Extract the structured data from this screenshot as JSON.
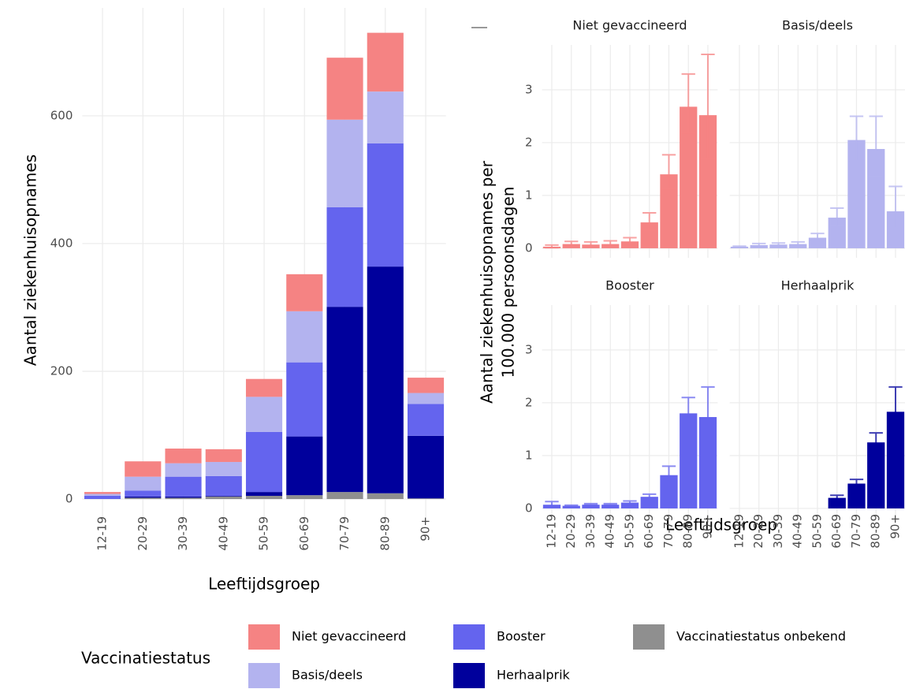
{
  "chart_data": [
    {
      "type": "stacked_bar",
      "categories": [
        "12-19",
        "20-29",
        "30-39",
        "40-49",
        "50-59",
        "60-69",
        "70-79",
        "80-89",
        "90+"
      ],
      "series": [
        {
          "name": "Vaccinatiestatus onbekend",
          "color": "#8f8f8f",
          "values": [
            0,
            2,
            2,
            4,
            5,
            6,
            11,
            9,
            1
          ]
        },
        {
          "name": "Herhaalprik",
          "color": "#00009c",
          "values": [
            0,
            2,
            2,
            1,
            6,
            92,
            290,
            355,
            98
          ]
        },
        {
          "name": "Booster",
          "color": "#6464ee",
          "values": [
            5,
            9,
            31,
            31,
            94,
            116,
            156,
            193,
            50
          ]
        },
        {
          "name": "Basis/deels",
          "color": "#b3b3ef",
          "values": [
            3,
            22,
            21,
            22,
            55,
            80,
            137,
            81,
            17
          ]
        },
        {
          "name": "Niet gevaccineerd",
          "color": "#f58383",
          "values": [
            3,
            24,
            23,
            20,
            28,
            58,
            97,
            92,
            24
          ]
        }
      ],
      "ylim": [
        -37,
        769
      ],
      "yticks": [
        0,
        200,
        400,
        600
      ],
      "grid": true,
      "xlabel": "Leeftijdsgroep",
      "ylabel": "Aantal ziekenhuisopnames",
      "legend_title": "Vaccinatiestatus"
    },
    {
      "type": "errorbar_bar",
      "title": "Niet gevaccineerd",
      "color": "#f58383",
      "categories": [
        "12-19",
        "20-29",
        "30-39",
        "40-49",
        "50-59",
        "60-69",
        "70-79",
        "80-89",
        "90+"
      ],
      "values": [
        0.03,
        0.08,
        0.07,
        0.08,
        0.13,
        0.49,
        1.4,
        2.68,
        2.52
      ],
      "lower": [
        0.01,
        0.05,
        0.04,
        0.05,
        0.09,
        0.35,
        1.12,
        2.18,
        1.7
      ],
      "upper": [
        0.06,
        0.13,
        0.12,
        0.14,
        0.2,
        0.67,
        1.77,
        3.3,
        3.67
      ],
      "ylim": [
        -0.18,
        3.85
      ],
      "yticks": [
        0,
        1,
        2,
        3
      ],
      "grid": true,
      "xlabel": "Leeftijdsgroep",
      "ylabel": [
        "Aantal ziekenhuisopnames per",
        "100.000 persoonsdagen"
      ]
    },
    {
      "type": "errorbar_bar",
      "title": "Basis/deels",
      "color": "#b3b3ef",
      "categories": [
        "12-19",
        "20-29",
        "30-39",
        "40-49",
        "50-59",
        "60-69",
        "70-79",
        "80-89",
        "90+"
      ],
      "values": [
        0.03,
        0.06,
        0.07,
        0.08,
        0.2,
        0.58,
        2.05,
        1.88,
        0.7
      ],
      "lower": [
        0.02,
        0.04,
        0.05,
        0.05,
        0.14,
        0.43,
        1.65,
        1.36,
        0.38
      ],
      "upper": [
        0.04,
        0.09,
        0.1,
        0.12,
        0.28,
        0.76,
        2.5,
        2.5,
        1.17
      ],
      "ylim": [
        -0.18,
        3.85
      ],
      "yticks": [
        0,
        1,
        2,
        3
      ],
      "grid": true
    },
    {
      "type": "errorbar_bar",
      "title": "Booster",
      "color": "#6464ee",
      "categories": [
        "12-19",
        "20-29",
        "30-39",
        "40-49",
        "50-59",
        "60-69",
        "70-79",
        "80-89",
        "90+"
      ],
      "values": [
        0.07,
        0.05,
        0.07,
        0.07,
        0.11,
        0.22,
        0.63,
        1.8,
        1.73
      ],
      "lower": [
        0.03,
        0.04,
        0.06,
        0.06,
        0.09,
        0.18,
        0.5,
        1.55,
        1.3
      ],
      "upper": [
        0.13,
        0.06,
        0.09,
        0.09,
        0.14,
        0.27,
        0.8,
        2.1,
        2.3
      ],
      "ylim": [
        -0.18,
        3.85
      ],
      "yticks": [
        0,
        1,
        2,
        3
      ],
      "grid": true
    },
    {
      "type": "errorbar_bar",
      "title": "Herhaalprik",
      "color": "#00009c",
      "categories": [
        "12-19",
        "20-29",
        "30-39",
        "40-49",
        "50-59",
        "60-69",
        "70-79",
        "80-89",
        "90+"
      ],
      "values": [
        null,
        null,
        null,
        null,
        null,
        0.2,
        0.47,
        1.25,
        1.83
      ],
      "lower": [
        null,
        null,
        null,
        null,
        null,
        0.15,
        0.4,
        1.1,
        1.42
      ],
      "upper": [
        null,
        null,
        null,
        null,
        null,
        0.25,
        0.55,
        1.43,
        2.3
      ],
      "ylim": [
        -0.18,
        3.85
      ],
      "yticks": [
        0,
        1,
        2,
        3
      ],
      "grid": true
    }
  ]
}
